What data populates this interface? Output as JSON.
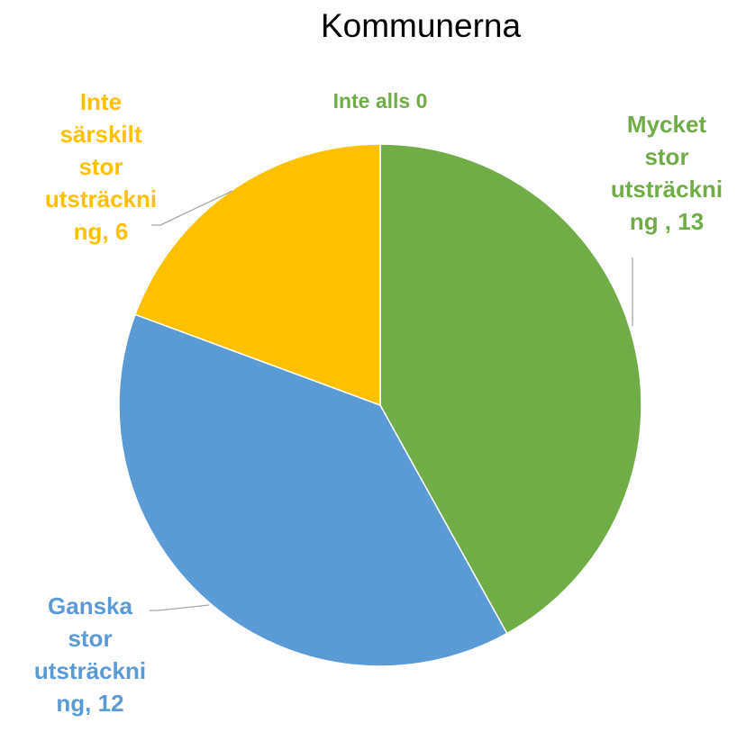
{
  "chart_data": {
    "type": "pie",
    "title": "Kommunerna",
    "values": [
      13,
      12,
      6,
      0
    ],
    "value_labels": [
      "Mycket stor utsträckning , 13",
      "Ganska stor utsträckning, 12",
      "Inte särskilt stor utsträckning, 6",
      "Inte alls 0"
    ],
    "colors": [
      "#70ad47",
      "#5b9bd5",
      "#ffc000",
      "#a5a5a5"
    ],
    "label_colors": [
      "#70ad47",
      "#5b9bd5",
      "#ffc000",
      "#70ad47"
    ]
  }
}
